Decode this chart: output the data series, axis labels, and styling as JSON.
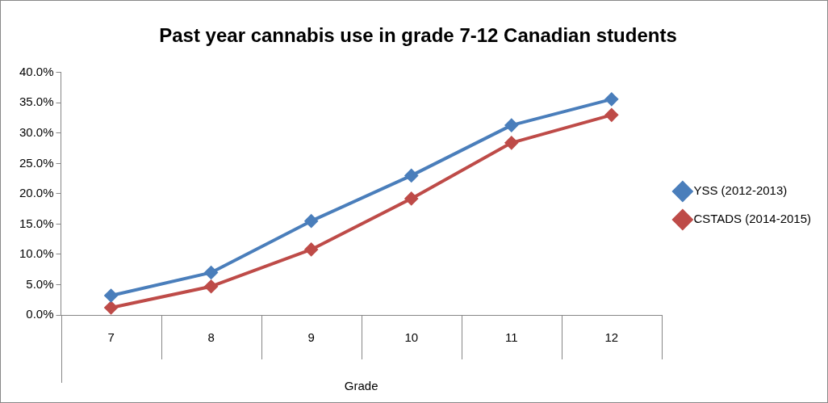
{
  "chart_data": {
    "type": "line",
    "title": "Past year cannabis use in grade 7-12 Canadian students",
    "xlabel": "Grade",
    "categories": [
      "7",
      "8",
      "9",
      "10",
      "11",
      "12"
    ],
    "series": [
      {
        "name": "YSS (2012-2013)",
        "color": "#4a7ebb",
        "values": [
          3.2,
          7.0,
          15.5,
          23.0,
          31.3,
          35.6
        ]
      },
      {
        "name": "CSTADS (2014-2015)",
        "color": "#be4b48",
        "values": [
          1.2,
          4.7,
          10.8,
          19.2,
          28.4,
          33.0
        ]
      }
    ],
    "ylim": [
      0,
      40
    ],
    "yticks": [
      {
        "value": 0,
        "label": "0.0%"
      },
      {
        "value": 5,
        "label": "5.0%"
      },
      {
        "value": 10,
        "label": "10.0%"
      },
      {
        "value": 15,
        "label": "15.0%"
      },
      {
        "value": 20,
        "label": "20.0%"
      },
      {
        "value": 25,
        "label": "25.0%"
      },
      {
        "value": 30,
        "label": "30.0%"
      },
      {
        "value": 35,
        "label": "35.0%"
      },
      {
        "value": 40,
        "label": "40.0%"
      }
    ],
    "grid": false,
    "legend": "right",
    "marker": "diamond",
    "line_style": "solid"
  }
}
